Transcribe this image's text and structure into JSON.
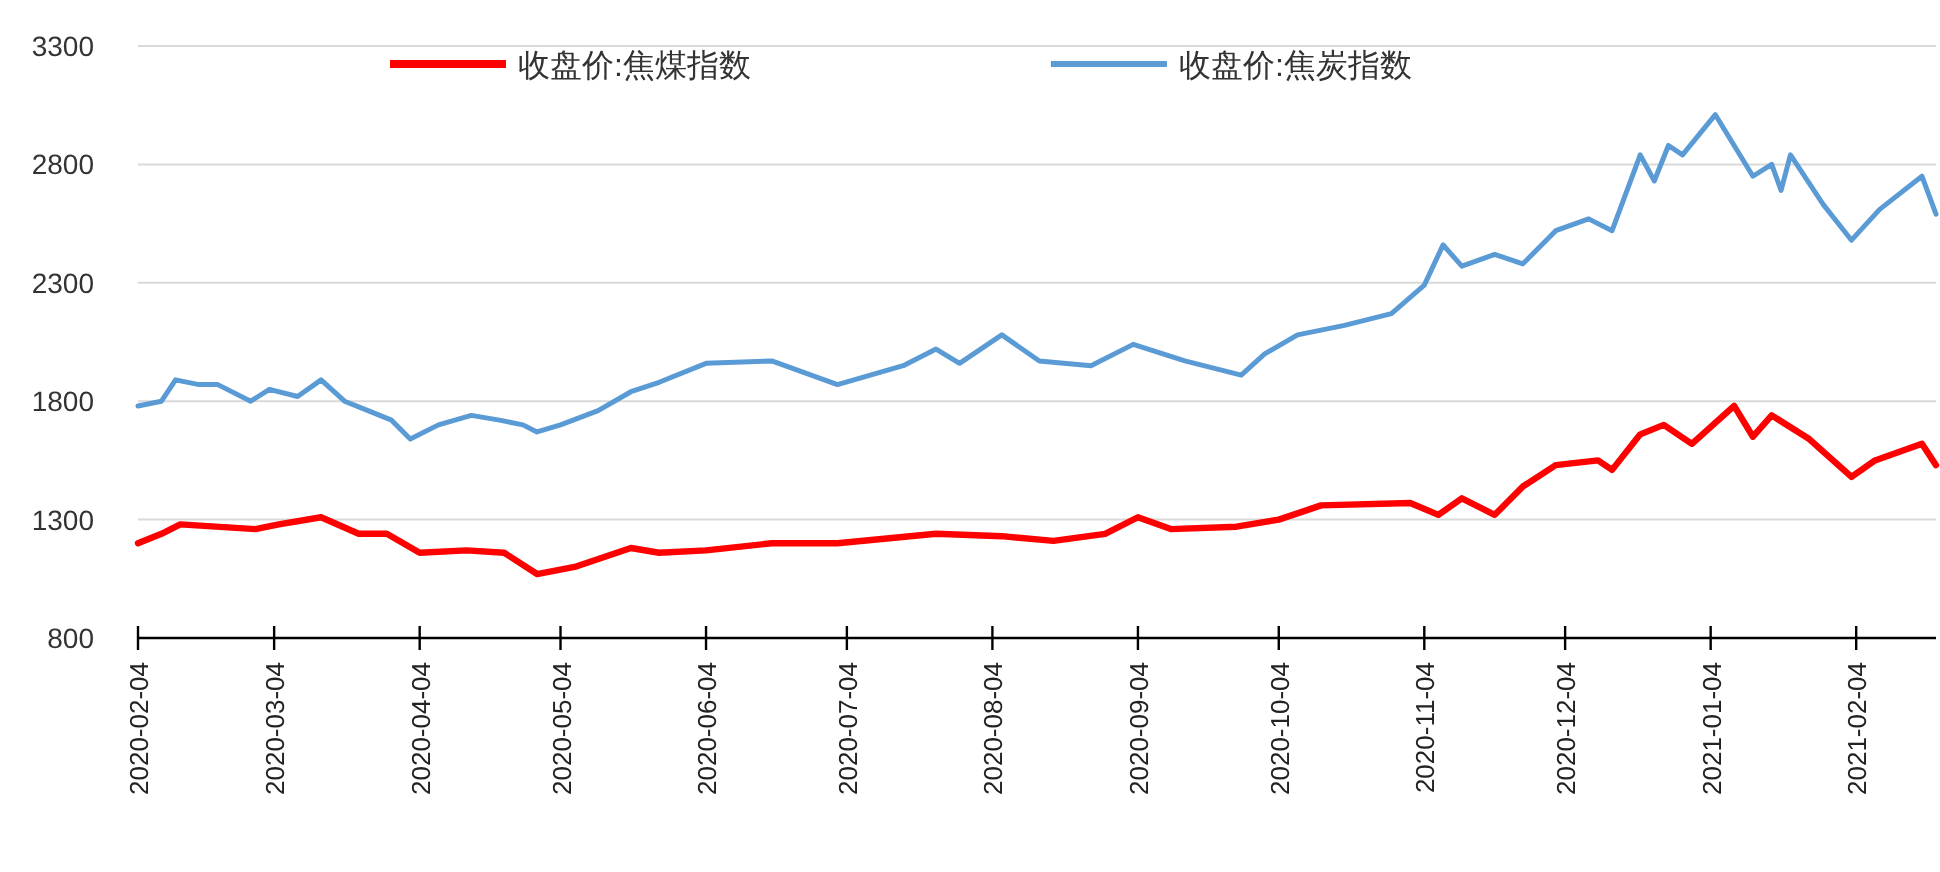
{
  "chart_data": {
    "type": "line",
    "legend": "top",
    "grid": "y",
    "marker": "none",
    "line_style": "solid",
    "xlim": [
      "2020-02-04",
      "2021-02-21"
    ],
    "xticks": [
      "2020-02-04",
      "2020-03-04",
      "2020-04-04",
      "2020-05-04",
      "2020-06-04",
      "2020-07-04",
      "2020-08-04",
      "2020-09-04",
      "2020-10-04",
      "2020-11-04",
      "2020-12-04",
      "2021-01-04",
      "2021-02-04"
    ],
    "ylim": [
      800,
      3300
    ],
    "yticks": [
      800,
      1300,
      1800,
      2300,
      2800,
      3300
    ],
    "series": [
      {
        "name": "收盘价:焦煤指数",
        "color": "#ff0000",
        "x": [
          "2020-02-04",
          "2020-02-09",
          "2020-02-13",
          "2020-02-29",
          "2020-03-05",
          "2020-03-14",
          "2020-03-22",
          "2020-03-28",
          "2020-04-04",
          "2020-04-14",
          "2020-04-22",
          "2020-04-29",
          "2020-05-07",
          "2020-05-19",
          "2020-05-25",
          "2020-06-04",
          "2020-06-18",
          "2020-07-02",
          "2020-07-23",
          "2020-08-06",
          "2020-08-17",
          "2020-08-28",
          "2020-09-04",
          "2020-09-11",
          "2020-09-25",
          "2020-10-04",
          "2020-10-13",
          "2020-11-01",
          "2020-11-07",
          "2020-11-12",
          "2020-11-19",
          "2020-11-25",
          "2020-12-02",
          "2020-12-11",
          "2020-12-14",
          "2020-12-20",
          "2020-12-25",
          "2020-12-31",
          "2021-01-09",
          "2021-01-13",
          "2021-01-17",
          "2021-01-25",
          "2021-02-03",
          "2021-02-08",
          "2021-02-18",
          "2021-02-21"
        ],
        "values": [
          1200,
          1240,
          1280,
          1260,
          1280,
          1310,
          1240,
          1240,
          1160,
          1170,
          1160,
          1070,
          1100,
          1180,
          1160,
          1170,
          1200,
          1200,
          1240,
          1230,
          1210,
          1240,
          1310,
          1260,
          1270,
          1300,
          1360,
          1370,
          1320,
          1390,
          1320,
          1440,
          1530,
          1550,
          1510,
          1660,
          1700,
          1620,
          1780,
          1650,
          1740,
          1640,
          1480,
          1550,
          1620,
          1530
        ]
      },
      {
        "name": "收盘价:焦炭指数",
        "color": "#5b9bd5",
        "x": [
          "2020-02-04",
          "2020-02-09",
          "2020-02-12",
          "2020-02-17",
          "2020-02-21",
          "2020-02-28",
          "2020-03-03",
          "2020-03-09",
          "2020-03-14",
          "2020-03-19",
          "2020-03-24",
          "2020-03-29",
          "2020-04-02",
          "2020-04-08",
          "2020-04-15",
          "2020-04-21",
          "2020-04-26",
          "2020-04-29",
          "2020-05-04",
          "2020-05-12",
          "2020-05-19",
          "2020-05-25",
          "2020-06-04",
          "2020-06-18",
          "2020-07-02",
          "2020-07-16",
          "2020-07-23",
          "2020-07-28",
          "2020-08-06",
          "2020-08-14",
          "2020-08-25",
          "2020-09-03",
          "2020-09-14",
          "2020-09-26",
          "2020-10-01",
          "2020-10-08",
          "2020-10-18",
          "2020-10-28",
          "2020-11-04",
          "2020-11-08",
          "2020-11-12",
          "2020-11-19",
          "2020-11-25",
          "2020-12-02",
          "2020-12-09",
          "2020-12-14",
          "2020-12-20",
          "2020-12-23",
          "2020-12-26",
          "2020-12-29",
          "2021-01-05",
          "2021-01-13",
          "2021-01-17",
          "2021-01-19",
          "2021-01-21",
          "2021-01-28",
          "2021-02-03",
          "2021-02-09",
          "2021-02-18",
          "2021-02-21"
        ],
        "values": [
          1780,
          1800,
          1890,
          1870,
          1870,
          1800,
          1850,
          1820,
          1890,
          1800,
          1760,
          1720,
          1640,
          1700,
          1740,
          1720,
          1700,
          1670,
          1700,
          1760,
          1840,
          1880,
          1960,
          1970,
          1870,
          1950,
          2020,
          1960,
          2080,
          1970,
          1950,
          2040,
          1970,
          1910,
          2000,
          2080,
          2120,
          2170,
          2290,
          2460,
          2370,
          2420,
          2380,
          2520,
          2570,
          2520,
          2840,
          2730,
          2880,
          2840,
          3010,
          2750,
          2800,
          2690,
          2840,
          2630,
          2480,
          2610,
          2750,
          2590
        ]
      }
    ]
  }
}
